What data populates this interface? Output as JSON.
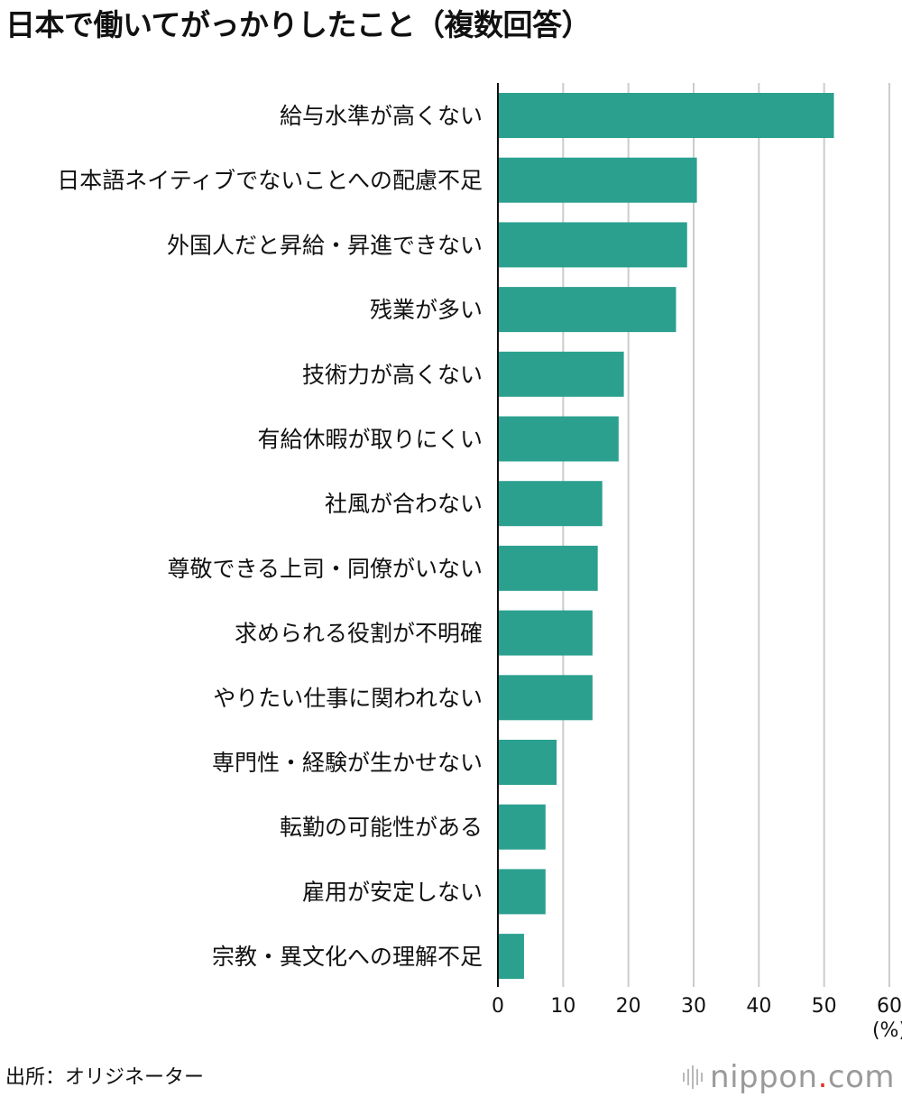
{
  "title": "日本で働いてがっかりしたこと（複数回答）",
  "source": "出所：オリジネーター",
  "brand": {
    "name": "nippon",
    "dot": ".",
    "suffix": "com"
  },
  "colors": {
    "bar": "#2ba08f",
    "grid": "#cccccc",
    "axis": "#111111"
  },
  "chart_data": {
    "type": "bar",
    "orientation": "horizontal",
    "categories": [
      "給与水準が高くない",
      "日本語ネイティブでないことへの配慮不足",
      "外国人だと昇給・昇進できない",
      "残業が多い",
      "技術力が高くない",
      "有給休暇が取りにくい",
      "社風が合わない",
      "尊敬できる上司・同僚がいない",
      "求められる役割が不明確",
      "やりたい仕事に関われない",
      "専門性・経験が生かせない",
      "転勤の可能性がある",
      "雇用が安定しない",
      "宗教・異文化への理解不足"
    ],
    "values": [
      51.5,
      30.5,
      29,
      27.3,
      19.3,
      18.5,
      16,
      15.3,
      14.5,
      14.5,
      9,
      7.3,
      7.3,
      4
    ],
    "xlim": [
      0,
      60
    ],
    "xticks": [
      0,
      10,
      20,
      30,
      40,
      50,
      60
    ],
    "xlabel": "(%)",
    "grid": true
  }
}
